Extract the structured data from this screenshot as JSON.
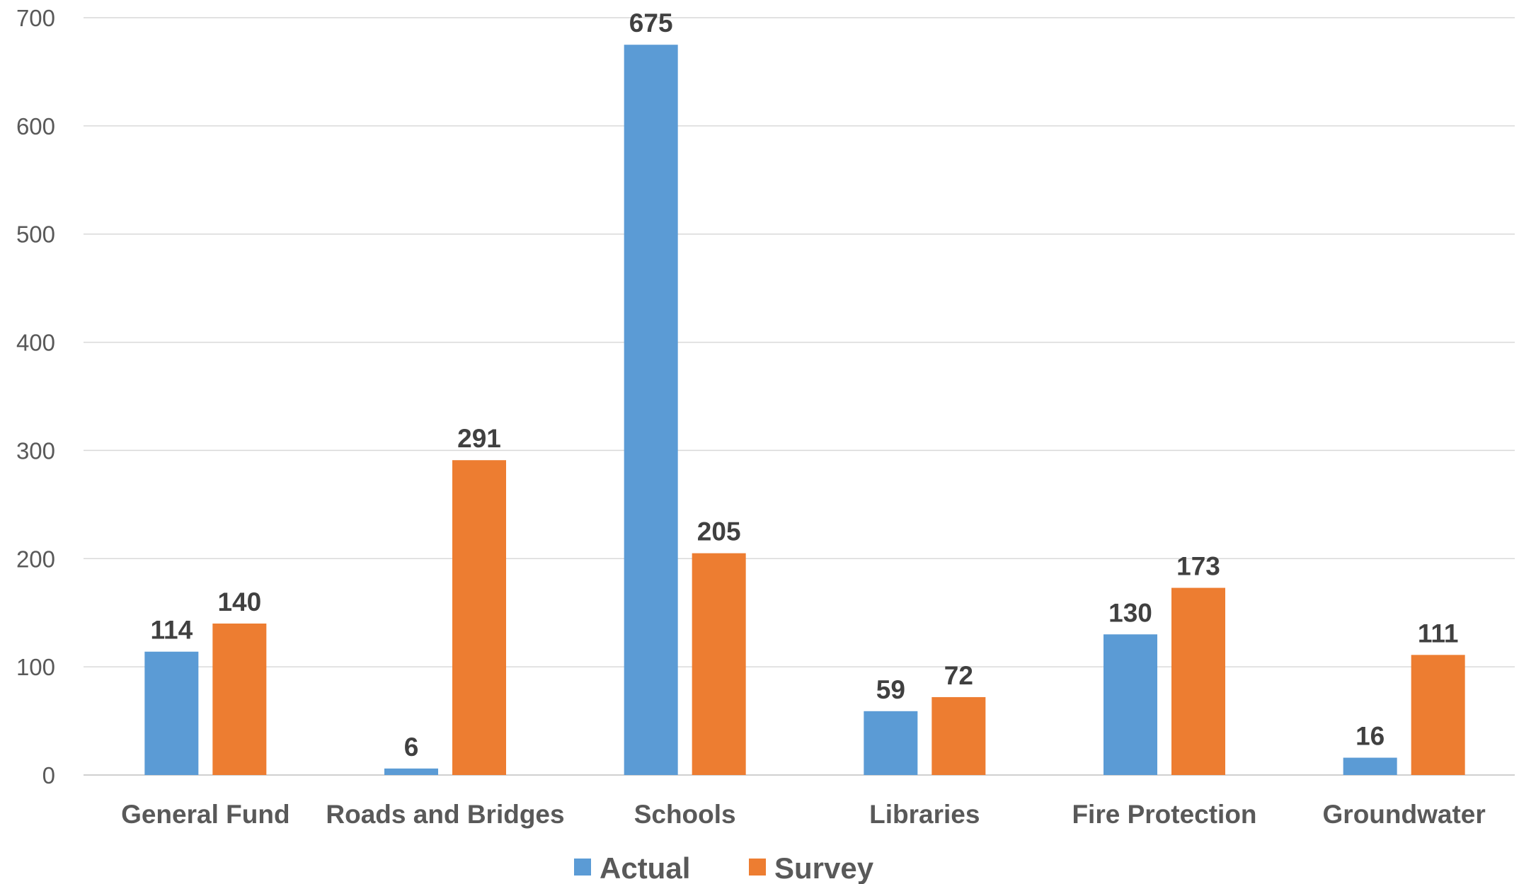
{
  "chart_data": {
    "type": "bar",
    "categories": [
      "General Fund",
      "Roads and Bridges",
      "Schools",
      "Libraries",
      "Fire Protection",
      "Groundwater"
    ],
    "series": [
      {
        "name": "Actual",
        "values": [
          114,
          6,
          675,
          59,
          130,
          16
        ],
        "color": "#5b9bd5"
      },
      {
        "name": "Survey",
        "values": [
          140,
          291,
          205,
          72,
          173,
          111
        ],
        "color": "#ed7d31"
      }
    ],
    "ylim": [
      0,
      700
    ],
    "yticks": [
      0,
      100,
      200,
      300,
      400,
      500,
      600,
      700
    ],
    "title": "",
    "xlabel": "",
    "ylabel": "",
    "grid": true,
    "legend": "bottom-center",
    "data_labels": true
  }
}
